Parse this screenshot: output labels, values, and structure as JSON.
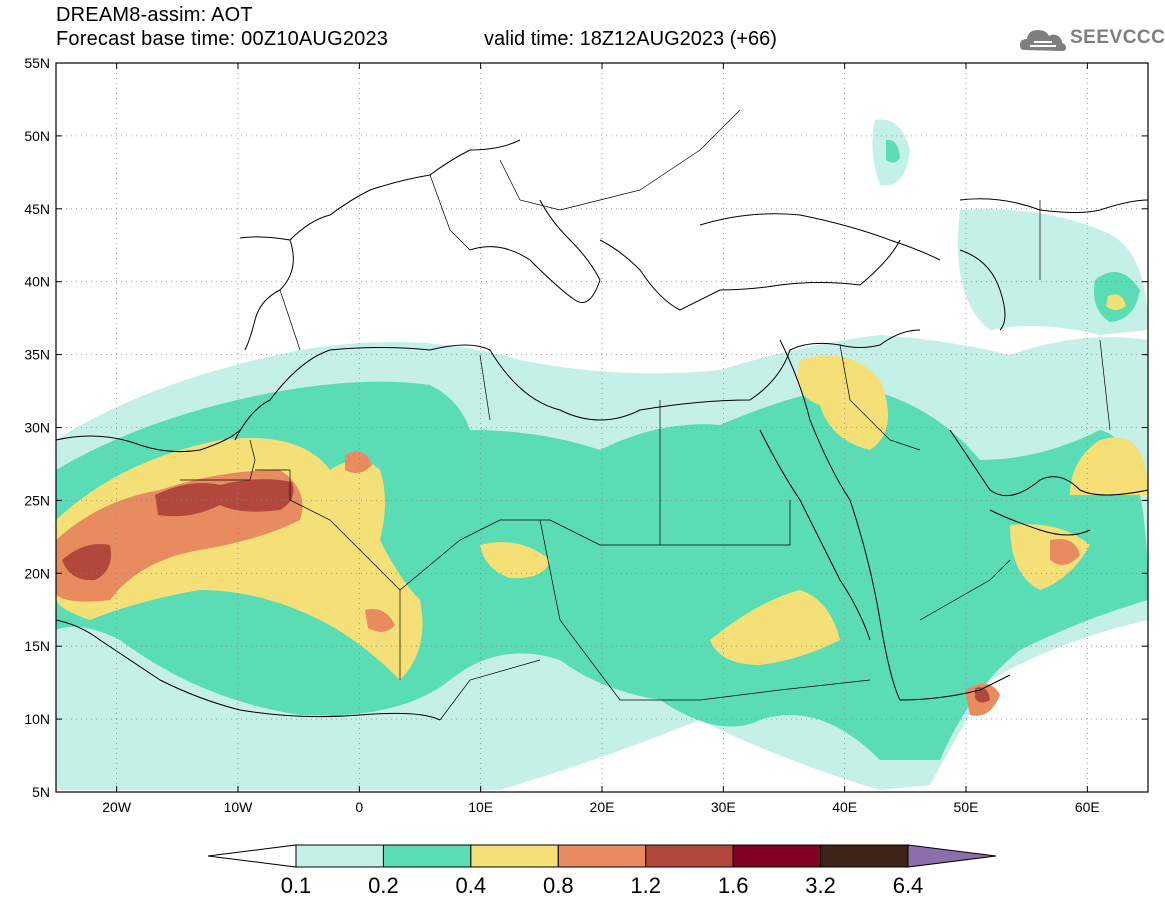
{
  "header": {
    "model_line": "DREAM8-assim: AOT",
    "base_time_line": "Forecast base time: 00Z10AUG2023",
    "valid_time_line": "valid time: 18Z12AUG2023 (+66)"
  },
  "logo": {
    "text": "SEEVCCC",
    "color": "#7f7f7f"
  },
  "map": {
    "lon_range": [
      -25,
      65
    ],
    "lat_range": [
      5,
      55
    ],
    "lat_ticks": [
      {
        "value": 55,
        "label": "55N"
      },
      {
        "value": 50,
        "label": "50N"
      },
      {
        "value": 45,
        "label": "45N"
      },
      {
        "value": 40,
        "label": "40N"
      },
      {
        "value": 35,
        "label": "35N"
      },
      {
        "value": 30,
        "label": "30N"
      },
      {
        "value": 25,
        "label": "25N"
      },
      {
        "value": 20,
        "label": "20N"
      },
      {
        "value": 15,
        "label": "15N"
      },
      {
        "value": 10,
        "label": "10N"
      },
      {
        "value": 5,
        "label": "5N"
      }
    ],
    "lon_ticks": [
      {
        "value": -20,
        "label": "20W"
      },
      {
        "value": -10,
        "label": "10W"
      },
      {
        "value": 0,
        "label": "0"
      },
      {
        "value": 10,
        "label": "10E"
      },
      {
        "value": 20,
        "label": "20E"
      },
      {
        "value": 30,
        "label": "30E"
      },
      {
        "value": 40,
        "label": "40E"
      },
      {
        "value": 50,
        "label": "50E"
      },
      {
        "value": 60,
        "label": "60E"
      }
    ],
    "grid": true
  },
  "colorbar": {
    "levels": [
      "0.1",
      "0.2",
      "0.4",
      "0.8",
      "1.2",
      "1.6",
      "3.2",
      "6.4"
    ],
    "colors": [
      "#ffffff",
      "#c4f0e8",
      "#5adcb4",
      "#f5e078",
      "#e88c5f",
      "#b2483c",
      "#820024",
      "#3c2418",
      "#8c6eaa"
    ],
    "extend": "both"
  }
}
